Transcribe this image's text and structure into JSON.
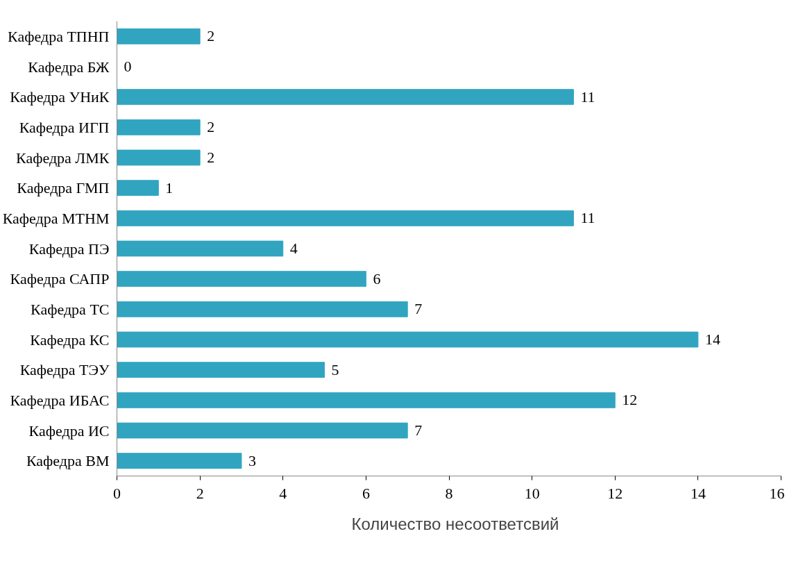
{
  "chart_data": {
    "type": "bar",
    "orientation": "horizontal",
    "categories": [
      "Кафедра ТПНП",
      "Кафедра БЖ",
      "Кафедра УНиК",
      "Кафедра ИГП",
      "Кафедра ЛМК",
      "Кафедра ГМП",
      "Кафедра МТНМ",
      "Кафедра ПЭ",
      "Кафедра САПР",
      "Кафедра ТС",
      "Кафедра КС",
      "Кафедра ТЭУ",
      "Кафедра ИБАС",
      "Кафедра ИС",
      "Кафедра ВМ"
    ],
    "series": [
      {
        "name": "Количество несоответсвий",
        "color": "#31a5c0",
        "values": [
          2,
          0,
          11,
          2,
          2,
          1,
          11,
          4,
          6,
          7,
          14,
          5,
          12,
          7,
          3
        ]
      }
    ],
    "xlim": [
      0,
      16
    ],
    "xticks": [
      0,
      2,
      4,
      6,
      8,
      10,
      12,
      14,
      16
    ],
    "data_labels": true,
    "legend": "bottom",
    "grid": false
  }
}
